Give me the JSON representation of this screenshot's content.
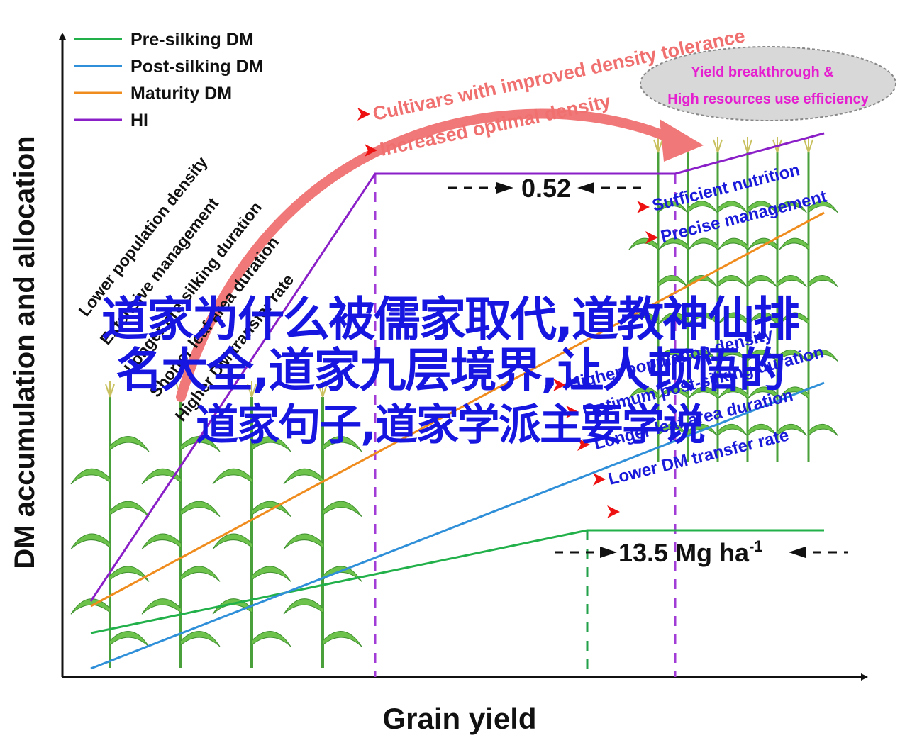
{
  "chart_data": {
    "type": "line",
    "title": "",
    "xlabel": "Grain yield",
    "ylabel": "DM accumulation and allocation",
    "grid": false,
    "legend_position": "top-left",
    "series": [
      {
        "name": "Pre-silking DM",
        "color": "#22b04a"
      },
      {
        "name": "Post-silking DM",
        "color": "#2f8fd8"
      },
      {
        "name": "Maturity DM",
        "color": "#ef8c1d"
      },
      {
        "name": "HI",
        "color": "#8a1fc8"
      }
    ],
    "annotations": {
      "left_factors": [
        "Lower population density",
        "Extensive management",
        "Longer pre-silking duration",
        "Shorter leaf area duration",
        "Higher DM transfer rate"
      ],
      "right_factors": [
        "Sufficient nutrition",
        "Precise management",
        "Higher population density",
        "Optimum post-silking duration",
        "Longer leaf area duration",
        "Lower DM transfer rate"
      ],
      "arrow_labels": [
        "Cultivars with improved density tolerance",
        "Increased optimal density"
      ],
      "ellipse_lines": [
        "Yield breakthrough &",
        "High resources use efficiency"
      ],
      "hi_plateau_label": "0.52",
      "yield_threshold_label": "13.5 Mg ha",
      "yield_threshold_sup": "-1"
    }
  },
  "overlay_text": {
    "line1": "道家为什么被儒家取代,道教神仙排",
    "line2": "名大全,道家九层境界,让人顿悟的",
    "line3": "道家句子,道家学派主要学说"
  }
}
